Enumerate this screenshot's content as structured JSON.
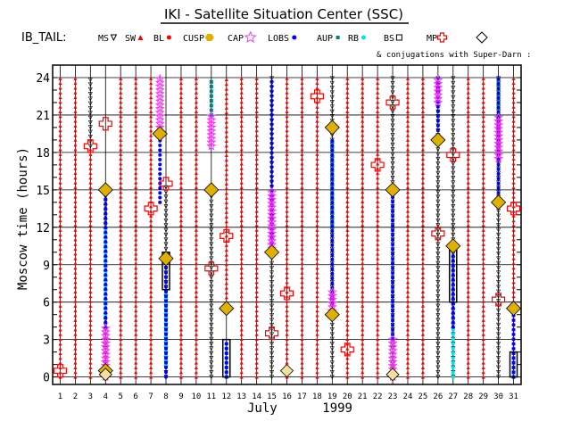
{
  "header": {
    "title": "IKI - Satellite Situation Center (SSC)",
    "region": "IB_TAIL:",
    "conjugations": "& conjugations with Super-Darn :"
  },
  "legend": [
    {
      "key": "MS",
      "label": "MS",
      "marker": "triangle-down",
      "color": "#000000"
    },
    {
      "key": "SW",
      "label": "SW",
      "marker": "triangle-up-filled",
      "color": "#ff0000"
    },
    {
      "key": "BL",
      "label": "BL",
      "marker": "dot",
      "color": "#ff0000"
    },
    {
      "key": "CUSP",
      "label": "CUSP",
      "marker": "hexagon",
      "color": "#e0b000"
    },
    {
      "key": "CAP",
      "label": "CAP",
      "marker": "star",
      "color": "#ff33ff"
    },
    {
      "key": "LOBS",
      "label": "LOBS",
      "marker": "dot",
      "color": "#0000ff"
    },
    {
      "key": "AUP",
      "label": "AUP",
      "marker": "square",
      "color": "#008080"
    },
    {
      "key": "RB",
      "label": "RB",
      "marker": "dot",
      "color": "#00e5e5"
    },
    {
      "key": "BS",
      "label": "BS",
      "marker": "square-open",
      "color": "#000000"
    },
    {
      "key": "MP",
      "label": "MP",
      "marker": "cross",
      "color": "#ff0000"
    },
    {
      "key": "SD",
      "label": "",
      "marker": "diamond",
      "color": "#000000"
    }
  ],
  "colors": {
    "sw": "#ff0000",
    "ms": "#000000",
    "lobs": "#0000ff",
    "cap": "#ff33ff",
    "cusp": "#e0b000",
    "aup": "#008080",
    "rb": "#00e5e5",
    "mp": "#ff0000",
    "grid": "#000000"
  },
  "chart_data": {
    "type": "scatter",
    "title": "IKI - Satellite Situation Center (SSC)",
    "xlabel": "July      1999",
    "ylabel": "Moscow time (hours)",
    "xlim": [
      0.5,
      31.5
    ],
    "ylim": [
      -0.6,
      25
    ],
    "x_ticks": [
      1,
      2,
      3,
      4,
      5,
      6,
      7,
      8,
      9,
      10,
      11,
      12,
      13,
      14,
      15,
      16,
      17,
      18,
      19,
      20,
      21,
      22,
      23,
      24,
      25,
      26,
      27,
      28,
      29,
      30,
      31
    ],
    "y_ticks": [
      0,
      3,
      6,
      9,
      12,
      15,
      18,
      21,
      24
    ],
    "columns": [
      {
        "day": 1,
        "segments": [
          {
            "region": "SW",
            "from": 0,
            "to": 24
          }
        ],
        "mp": [
          0.5
        ]
      },
      {
        "day": 2,
        "segments": [
          {
            "region": "SW",
            "from": 0,
            "to": 24
          }
        ]
      },
      {
        "day": 3,
        "segments": [
          {
            "region": "SW",
            "from": 0,
            "to": 18.5
          },
          {
            "region": "MS",
            "from": 18.5,
            "to": 24
          }
        ],
        "mp": [
          18.5
        ]
      },
      {
        "day": 4,
        "segments": [
          {
            "region": "MS",
            "from": 0,
            "to": 15
          },
          {
            "region": "LOBS",
            "from": 4,
            "to": 15
          },
          {
            "region": "CAP",
            "from": 0,
            "to": 4
          },
          {
            "region": "RB",
            "from": 5,
            "to": 12
          }
        ],
        "mp": [
          20.3
        ],
        "cusp": [
          0.5,
          15
        ],
        "sd": [
          0.2
        ]
      },
      {
        "day": 5,
        "segments": [
          {
            "region": "SW",
            "from": 0,
            "to": 24
          }
        ]
      },
      {
        "day": 6,
        "segments": [
          {
            "region": "SW",
            "from": 0,
            "to": 24
          }
        ]
      },
      {
        "day": 7,
        "segments": [
          {
            "region": "SW",
            "from": 0,
            "to": 24
          }
        ],
        "mp": [
          13.5
        ]
      },
      {
        "day": 7.6,
        "segments": [
          {
            "region": "CAP",
            "from": 20,
            "to": 24
          },
          {
            "region": "LOBS",
            "from": 14,
            "to": 20
          }
        ],
        "cusp": [
          19.5
        ]
      },
      {
        "day": 8,
        "segments": [
          {
            "region": "MS",
            "from": 0,
            "to": 15.5
          },
          {
            "region": "LOBS",
            "from": 0,
            "to": 9
          },
          {
            "region": "RB",
            "from": 1,
            "to": 7
          }
        ],
        "mp": [
          15.5
        ],
        "cusp": [
          9.5
        ],
        "bs": [
          7,
          10
        ]
      },
      {
        "day": 9,
        "segments": [
          {
            "region": "SW",
            "from": 0,
            "to": 24
          }
        ]
      },
      {
        "day": 10,
        "segments": [
          {
            "region": "SW",
            "from": 0,
            "to": 24
          }
        ]
      },
      {
        "day": 11,
        "segments": [
          {
            "region": "MS",
            "from": 0,
            "to": 15
          },
          {
            "region": "CAP",
            "from": 18.5,
            "to": 21
          },
          {
            "region": "AUP",
            "from": 21,
            "to": 24
          }
        ],
        "mp": [
          8.7
        ],
        "cusp": [
          15
        ]
      },
      {
        "day": 12,
        "segments": [
          {
            "region": "SW",
            "from": 6,
            "to": 24
          },
          {
            "region": "LOBS",
            "from": 0,
            "to": 3
          },
          {
            "region": "AUP",
            "from": 0,
            "to": 3
          }
        ],
        "mp": [
          11.3
        ],
        "cusp": [
          5.5
        ],
        "bs": [
          0,
          3
        ]
      },
      {
        "day": 13,
        "segments": [
          {
            "region": "SW",
            "from": 0,
            "to": 24
          }
        ]
      },
      {
        "day": 14,
        "segments": [
          {
            "region": "SW",
            "from": 0,
            "to": 24
          }
        ]
      },
      {
        "day": 15,
        "segments": [
          {
            "region": "MS",
            "from": 0,
            "to": 24
          },
          {
            "region": "LOBS",
            "from": 10,
            "to": 24
          },
          {
            "region": "CAP",
            "from": 10,
            "to": 15
          }
        ],
        "mp": [
          3.5
        ],
        "cusp": [
          10
        ]
      },
      {
        "day": 16,
        "segments": [
          {
            "region": "SW",
            "from": 0,
            "to": 24
          }
        ],
        "mp": [
          6.7
        ],
        "sd": [
          0.5
        ]
      },
      {
        "day": 17,
        "segments": [
          {
            "region": "SW",
            "from": 0,
            "to": 24
          }
        ]
      },
      {
        "day": 18,
        "segments": [
          {
            "region": "SW",
            "from": 0,
            "to": 24
          }
        ],
        "mp": [
          22.5
        ]
      },
      {
        "day": 19,
        "segments": [
          {
            "region": "MS",
            "from": 0,
            "to": 24
          },
          {
            "region": "LOBS",
            "from": 6,
            "to": 19
          },
          {
            "region": "CAP",
            "from": 5,
            "to": 7
          },
          {
            "region": "AUP",
            "from": 12,
            "to": 19
          }
        ],
        "cusp": [
          5,
          20
        ]
      },
      {
        "day": 20,
        "segments": [
          {
            "region": "SW",
            "from": 0,
            "to": 24
          }
        ],
        "mp": [
          2.2
        ]
      },
      {
        "day": 21,
        "segments": [
          {
            "region": "SW",
            "from": 0,
            "to": 24
          }
        ]
      },
      {
        "day": 22,
        "segments": [
          {
            "region": "SW",
            "from": 0,
            "to": 24
          }
        ],
        "mp": [
          17
        ]
      },
      {
        "day": 23,
        "segments": [
          {
            "region": "MS",
            "from": 0,
            "to": 24
          },
          {
            "region": "LOBS",
            "from": 3,
            "to": 15
          },
          {
            "region": "CAP",
            "from": 0,
            "to": 3
          }
        ],
        "mp": [
          22
        ],
        "cusp": [
          15
        ],
        "sd": [
          0.2
        ]
      },
      {
        "day": 24,
        "segments": [
          {
            "region": "SW",
            "from": 0,
            "to": 24
          }
        ]
      },
      {
        "day": 25,
        "segments": [
          {
            "region": "SW",
            "from": 0,
            "to": 24
          }
        ]
      },
      {
        "day": 26,
        "segments": [
          {
            "region": "MS",
            "from": 0,
            "to": 24
          },
          {
            "region": "LOBS",
            "from": 19,
            "to": 24
          },
          {
            "region": "CAP",
            "from": 22,
            "to": 24
          }
        ],
        "mp": [
          11.5
        ],
        "cusp": [
          19
        ]
      },
      {
        "day": 27,
        "segments": [
          {
            "region": "MS",
            "from": 0,
            "to": 24
          },
          {
            "region": "LOBS",
            "from": 4,
            "to": 10
          },
          {
            "region": "RB",
            "from": 0,
            "to": 4
          }
        ],
        "mp": [
          17.8
        ],
        "cusp": [
          10.5
        ],
        "bs": [
          6,
          10.5
        ]
      },
      {
        "day": 28,
        "segments": [
          {
            "region": "SW",
            "from": 0,
            "to": 24
          }
        ]
      },
      {
        "day": 29,
        "segments": [
          {
            "region": "SW",
            "from": 0,
            "to": 24
          }
        ]
      },
      {
        "day": 30,
        "segments": [
          {
            "region": "MS",
            "from": 0,
            "to": 24
          },
          {
            "region": "LOBS",
            "from": 14,
            "to": 24
          },
          {
            "region": "CAP",
            "from": 17.5,
            "to": 21
          },
          {
            "region": "AUP",
            "from": 20,
            "to": 24
          }
        ],
        "mp": [
          6.2
        ],
        "cusp": [
          14
        ]
      },
      {
        "day": 31,
        "segments": [
          {
            "region": "SW",
            "from": 0,
            "to": 24
          },
          {
            "region": "LOBS",
            "from": 0,
            "to": 5
          },
          {
            "region": "AUP",
            "from": 0,
            "to": 2
          }
        ],
        "mp": [
          13.5
        ],
        "cusp": [
          5.5
        ],
        "bs": [
          0,
          2
        ]
      }
    ]
  }
}
